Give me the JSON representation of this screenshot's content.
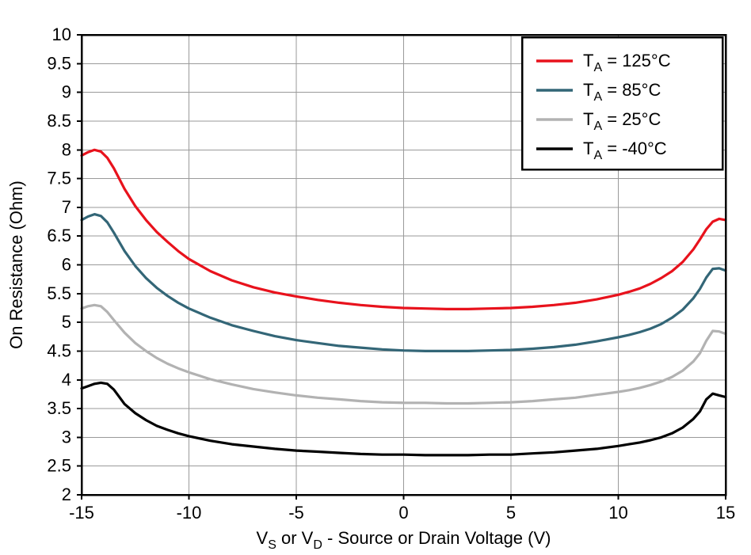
{
  "page": {
    "background": "#ffffff"
  },
  "chart_data": {
    "type": "line",
    "title": "",
    "ylabel": "On Resistance (Ohm)",
    "xlabel_plain": "VS or VD - Source or Drain Voltage (V)",
    "xlabel_parts": [
      {
        "text": "V"
      },
      {
        "text": "S",
        "sub": true
      },
      {
        "text": " or V"
      },
      {
        "text": "D",
        "sub": true
      },
      {
        "text": " - Source or Drain Voltage (V)"
      }
    ],
    "xlim": [
      -15,
      15
    ],
    "ylim": [
      2,
      10
    ],
    "xticks": [
      -15,
      -10,
      -5,
      0,
      5,
      10,
      15
    ],
    "yticks": [
      2,
      2.5,
      3,
      3.5,
      4,
      4.5,
      5,
      5.5,
      6,
      6.5,
      7,
      7.5,
      8,
      8.5,
      9,
      9.5,
      10
    ],
    "grid": true,
    "grid_color": "#9a9a9a",
    "axis_color": "#000000",
    "legend_position": "top-right",
    "x": [
      -15,
      -14.7,
      -14.4,
      -14.1,
      -13.8,
      -13.5,
      -13,
      -12.5,
      -12,
      -11.5,
      -11,
      -10.5,
      -10,
      -9,
      -8,
      -7,
      -6,
      -5,
      -4,
      -3,
      -2,
      -1,
      0,
      1,
      2,
      3,
      4,
      5,
      6,
      7,
      8,
      9,
      10,
      10.5,
      11,
      11.5,
      12,
      12.5,
      13,
      13.5,
      13.8,
      14.1,
      14.4,
      14.7,
      15
    ],
    "series": [
      {
        "name": "TA = 125°C",
        "label_pre": "T",
        "label_sub": "A",
        "label_post": " = 125°C",
        "color": "#e8121c",
        "values": [
          7.9,
          7.96,
          8.0,
          7.97,
          7.86,
          7.68,
          7.32,
          7.02,
          6.78,
          6.57,
          6.4,
          6.24,
          6.1,
          5.89,
          5.73,
          5.61,
          5.52,
          5.45,
          5.39,
          5.34,
          5.3,
          5.27,
          5.25,
          5.24,
          5.23,
          5.23,
          5.24,
          5.25,
          5.27,
          5.3,
          5.34,
          5.4,
          5.48,
          5.53,
          5.59,
          5.67,
          5.77,
          5.89,
          6.05,
          6.27,
          6.44,
          6.62,
          6.75,
          6.8,
          6.78
        ]
      },
      {
        "name": "TA = 85°C",
        "label_pre": "T",
        "label_sub": "A",
        "label_post": " = 85°C",
        "color": "#336677",
        "values": [
          6.78,
          6.84,
          6.88,
          6.85,
          6.74,
          6.56,
          6.24,
          5.98,
          5.77,
          5.6,
          5.46,
          5.34,
          5.24,
          5.08,
          4.95,
          4.85,
          4.76,
          4.69,
          4.64,
          4.59,
          4.56,
          4.53,
          4.51,
          4.5,
          4.5,
          4.5,
          4.51,
          4.52,
          4.54,
          4.57,
          4.61,
          4.67,
          4.74,
          4.78,
          4.83,
          4.89,
          4.97,
          5.08,
          5.22,
          5.42,
          5.58,
          5.78,
          5.93,
          5.94,
          5.9
        ]
      },
      {
        "name": "TA = 25°C",
        "label_pre": "T",
        "label_sub": "A",
        "label_post": " = 25°C",
        "color": "#b2b2b2",
        "values": [
          5.24,
          5.28,
          5.3,
          5.28,
          5.18,
          5.04,
          4.82,
          4.64,
          4.5,
          4.38,
          4.28,
          4.2,
          4.13,
          4.01,
          3.92,
          3.84,
          3.78,
          3.73,
          3.69,
          3.66,
          3.63,
          3.61,
          3.6,
          3.6,
          3.59,
          3.59,
          3.6,
          3.61,
          3.63,
          3.66,
          3.69,
          3.74,
          3.79,
          3.82,
          3.86,
          3.91,
          3.97,
          4.05,
          4.16,
          4.32,
          4.46,
          4.68,
          4.85,
          4.84,
          4.8
        ]
      },
      {
        "name": "TA = -40°C",
        "label_pre": "T",
        "label_sub": "A",
        "label_post": " = -40°C",
        "color": "#000000",
        "values": [
          3.85,
          3.89,
          3.93,
          3.95,
          3.93,
          3.83,
          3.58,
          3.42,
          3.3,
          3.2,
          3.13,
          3.07,
          3.02,
          2.94,
          2.88,
          2.84,
          2.8,
          2.77,
          2.75,
          2.73,
          2.71,
          2.7,
          2.7,
          2.69,
          2.69,
          2.69,
          2.7,
          2.7,
          2.72,
          2.74,
          2.77,
          2.8,
          2.85,
          2.88,
          2.91,
          2.95,
          3.0,
          3.07,
          3.17,
          3.32,
          3.45,
          3.66,
          3.76,
          3.73,
          3.7
        ]
      }
    ]
  }
}
